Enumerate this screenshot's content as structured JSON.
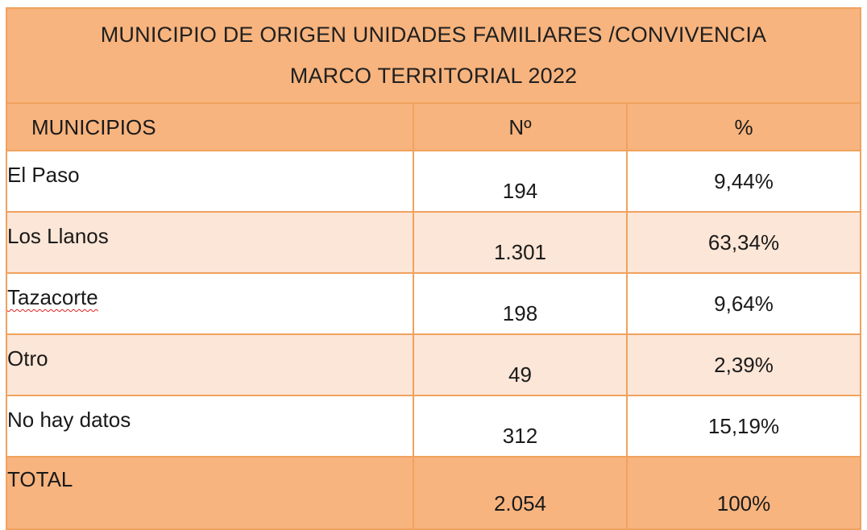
{
  "title": {
    "line1": "MUNICIPIO DE ORIGEN UNIDADES FAMILIARES /CONVIVENCIA",
    "line2": "MARCO TERRITORIAL 2022"
  },
  "columns": [
    "MUNICIPIOS",
    "Nº",
    "%"
  ],
  "rows": [
    {
      "municipio": "El Paso",
      "numero": "194",
      "porcentaje": "9,44%"
    },
    {
      "municipio": "Los Llanos",
      "numero": "1.301",
      "porcentaje": "63,34%"
    },
    {
      "municipio": "Tazacorte",
      "numero": "198",
      "porcentaje": "9,64%"
    },
    {
      "municipio": "Otro",
      "numero": "49",
      "porcentaje": "2,39%"
    },
    {
      "municipio": "No hay datos",
      "numero": "312",
      "porcentaje": "15,19%"
    }
  ],
  "total": {
    "label": "TOTAL",
    "numero": "2.054",
    "porcentaje": "100%"
  },
  "colors": {
    "header_fill": "#f8b47e",
    "band_fill": "#fce6d7",
    "border": "#f0a25f",
    "spellcheck_underline": "#e02020"
  }
}
